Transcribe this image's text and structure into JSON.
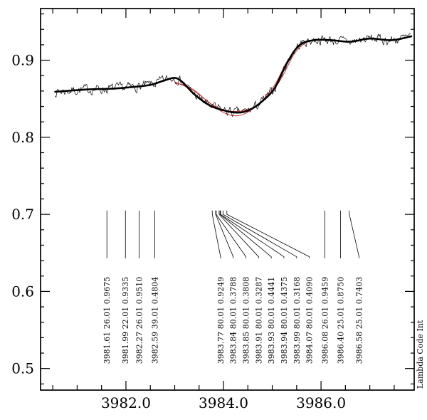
{
  "chart_data": {
    "type": "line",
    "title": "",
    "xlabel": "",
    "ylabel": "",
    "right_label": "Lambda Code Int",
    "xlim": [
      3980.25,
      3987.91
    ],
    "ylim": [
      0.472,
      0.967
    ],
    "x_major_ticks": [
      3982.0,
      3984.0,
      3986.0
    ],
    "x_tick_labels": [
      "3982.0",
      "3984.0",
      "3986.0"
    ],
    "x_minor_step": 0.5,
    "y_major_ticks": [
      0.5,
      0.6,
      0.7,
      0.8,
      0.9
    ],
    "y_tick_labels": [
      "0.5",
      "0.6",
      "0.7",
      "0.8",
      "0.9"
    ],
    "y_minor_step": 0.02,
    "grid": false,
    "colors": {
      "spectrum": "#000000",
      "fit": "#cc2222",
      "frame": "#000000"
    },
    "series": [
      {
        "name": "observed-spectrum",
        "color": "#000000",
        "width": 0.7,
        "noise_amp": 0.011,
        "noise_seed": 7,
        "sample_step": 0.018,
        "range": [
          3980.55,
          3987.85
        ],
        "base": "smoothed-spectrum"
      },
      {
        "name": "smoothed-spectrum",
        "color": "#000000",
        "width": 2.6,
        "points": [
          [
            3980.55,
            0.859
          ],
          [
            3981.2,
            0.862
          ],
          [
            3981.7,
            0.863
          ],
          [
            3982.1,
            0.865
          ],
          [
            3982.5,
            0.868
          ],
          [
            3982.8,
            0.874
          ],
          [
            3983.0,
            0.877
          ],
          [
            3983.15,
            0.872
          ],
          [
            3983.4,
            0.856
          ],
          [
            3983.7,
            0.842
          ],
          [
            3984.0,
            0.835
          ],
          [
            3984.3,
            0.832
          ],
          [
            3984.55,
            0.836
          ],
          [
            3984.8,
            0.847
          ],
          [
            3985.05,
            0.864
          ],
          [
            3985.3,
            0.896
          ],
          [
            3985.55,
            0.919
          ],
          [
            3985.85,
            0.926
          ],
          [
            3986.2,
            0.926
          ],
          [
            3986.6,
            0.924
          ],
          [
            3987.0,
            0.928
          ],
          [
            3987.45,
            0.926
          ],
          [
            3987.85,
            0.931
          ]
        ]
      },
      {
        "name": "fit-profile",
        "color": "#cc2222",
        "width": 0.9,
        "points": [
          [
            3983.0,
            0.871
          ],
          [
            3983.35,
            0.863
          ],
          [
            3983.65,
            0.848
          ],
          [
            3983.95,
            0.834
          ],
          [
            3984.2,
            0.828
          ],
          [
            3984.45,
            0.831
          ],
          [
            3984.75,
            0.845
          ],
          [
            3985.05,
            0.868
          ],
          [
            3985.3,
            0.898
          ],
          [
            3985.55,
            0.918
          ],
          [
            3985.8,
            0.926
          ]
        ]
      },
      {
        "name": "fit-profile-2",
        "color": "#cc2222",
        "width": 0.9,
        "points": [
          [
            3983.0,
            0.872
          ],
          [
            3983.4,
            0.86
          ],
          [
            3983.75,
            0.843
          ],
          [
            3984.05,
            0.835
          ],
          [
            3984.35,
            0.834
          ],
          [
            3984.65,
            0.84
          ],
          [
            3984.95,
            0.855
          ],
          [
            3985.2,
            0.878
          ],
          [
            3985.45,
            0.908
          ],
          [
            3985.7,
            0.923
          ],
          [
            3985.95,
            0.927
          ]
        ]
      }
    ],
    "line_ids": {
      "top_y": 0.705,
      "bend_y": 0.7,
      "line_end_y": 0.643,
      "text_bottom_y": 0.506,
      "items": [
        {
          "lambda": "3981.61",
          "code": "26.01",
          "intensity": "0.9675",
          "label_x": 3981.61
        },
        {
          "lambda": "3981.99",
          "code": "22.01",
          "intensity": "0.9335",
          "label_x": 3981.99
        },
        {
          "lambda": "3982.27",
          "code": "26.01",
          "intensity": "0.9510",
          "label_x": 3982.27
        },
        {
          "lambda": "3982.59",
          "code": "39.01",
          "intensity": "0.4804",
          "label_x": 3982.59
        },
        {
          "lambda": "3983.77",
          "code": "80.01",
          "intensity": "0.9249",
          "label_x": 3983.94
        },
        {
          "lambda": "3983.84",
          "code": "80.01",
          "intensity": "0.3788",
          "label_x": 3984.2
        },
        {
          "lambda": "3983.85",
          "code": "80.01",
          "intensity": "0.3808",
          "label_x": 3984.46
        },
        {
          "lambda": "3983.91",
          "code": "80.01",
          "intensity": "0.3287",
          "label_x": 3984.72
        },
        {
          "lambda": "3983.93",
          "code": "80.01",
          "intensity": "0.4441",
          "label_x": 3984.98
        },
        {
          "lambda": "3983.94",
          "code": "80.01",
          "intensity": "0.4375",
          "label_x": 3985.24
        },
        {
          "lambda": "3983.99",
          "code": "80.01",
          "intensity": "0.3168",
          "label_x": 3985.5
        },
        {
          "lambda": "3984.07",
          "code": "80.01",
          "intensity": "0.4090",
          "label_x": 3985.76
        },
        {
          "lambda": "3986.08",
          "code": "26.01",
          "intensity": "0.9459",
          "label_x": 3986.08
        },
        {
          "lambda": "3986.40",
          "code": "25.01",
          "intensity": "0.8750",
          "label_x": 3986.4
        },
        {
          "lambda": "3986.58",
          "code": "25.01",
          "intensity": "0.7403",
          "label_x": 3986.78
        }
      ]
    }
  }
}
